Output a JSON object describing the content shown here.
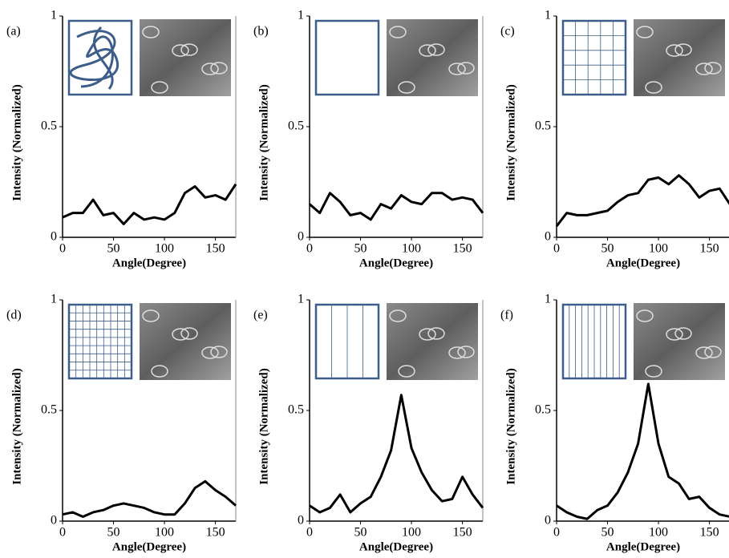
{
  "chart_data": [
    {
      "type": "line",
      "title": "(a)",
      "ylabel": "Intensity (Normalized)",
      "xlabel": "Angle(Degree)",
      "x": [
        0,
        10,
        20,
        30,
        40,
        50,
        60,
        70,
        80,
        90,
        100,
        110,
        120,
        130,
        140,
        150,
        160,
        170
      ],
      "values": [
        0.09,
        0.11,
        0.11,
        0.17,
        0.1,
        0.11,
        0.06,
        0.11,
        0.08,
        0.09,
        0.08,
        0.11,
        0.2,
        0.23,
        0.18,
        0.19,
        0.17,
        0.24
      ],
      "color": "#000000",
      "xlim": [
        0,
        170
      ],
      "xticks": [
        0,
        50,
        100,
        150
      ],
      "ylim": [
        0,
        1
      ],
      "yticks": [
        0,
        0.5,
        1
      ]
    },
    {
      "type": "line",
      "title": "(b)",
      "ylabel": "Intensity (Normalized)",
      "xlabel": "Angle(Degree)",
      "x": [
        0,
        10,
        20,
        30,
        40,
        50,
        60,
        70,
        80,
        90,
        100,
        110,
        120,
        130,
        140,
        150,
        160,
        170
      ],
      "values": [
        0.15,
        0.11,
        0.2,
        0.16,
        0.1,
        0.11,
        0.08,
        0.15,
        0.13,
        0.19,
        0.16,
        0.15,
        0.2,
        0.2,
        0.17,
        0.18,
        0.17,
        0.11
      ],
      "color": "#000000",
      "xlim": [
        0,
        170
      ],
      "xticks": [
        0,
        50,
        100,
        150
      ],
      "ylim": [
        0,
        1
      ],
      "yticks": [
        0,
        0.5,
        1
      ]
    },
    {
      "type": "line",
      "title": "(c)",
      "ylabel": "Intensity (Normalized)",
      "xlabel": "Angle(Degree)",
      "x": [
        0,
        10,
        20,
        30,
        40,
        50,
        60,
        70,
        80,
        90,
        100,
        110,
        120,
        130,
        140,
        150,
        160,
        170
      ],
      "values": [
        0.05,
        0.11,
        0.1,
        0.1,
        0.11,
        0.12,
        0.16,
        0.19,
        0.2,
        0.26,
        0.27,
        0.24,
        0.28,
        0.24,
        0.18,
        0.21,
        0.22,
        0.15
      ],
      "color": "#000000",
      "xlim": [
        0,
        170
      ],
      "xticks": [
        0,
        50,
        100,
        150
      ],
      "ylim": [
        0,
        1
      ],
      "yticks": [
        0,
        0.5,
        1
      ]
    },
    {
      "type": "line",
      "title": "(d)",
      "ylabel": "Intensity (Normalized)",
      "xlabel": "Angle(Degree)",
      "x": [
        0,
        10,
        20,
        30,
        40,
        50,
        60,
        70,
        80,
        90,
        100,
        110,
        120,
        130,
        140,
        150,
        160,
        170
      ],
      "values": [
        0.03,
        0.04,
        0.02,
        0.04,
        0.05,
        0.07,
        0.08,
        0.07,
        0.06,
        0.04,
        0.03,
        0.03,
        0.08,
        0.15,
        0.18,
        0.14,
        0.11,
        0.07
      ],
      "color": "#000000",
      "xlim": [
        0,
        170
      ],
      "xticks": [
        0,
        50,
        100,
        150
      ],
      "ylim": [
        0,
        1
      ],
      "yticks": [
        0,
        0.5,
        1
      ]
    },
    {
      "type": "line",
      "title": "(e)",
      "ylabel": "Intensity (Normalized)",
      "xlabel": "Angle(Degree)",
      "x": [
        0,
        10,
        20,
        30,
        40,
        50,
        60,
        70,
        80,
        90,
        100,
        110,
        120,
        130,
        140,
        150,
        160,
        170
      ],
      "values": [
        0.07,
        0.04,
        0.06,
        0.12,
        0.04,
        0.08,
        0.11,
        0.2,
        0.32,
        0.57,
        0.33,
        0.22,
        0.14,
        0.09,
        0.1,
        0.2,
        0.12,
        0.06
      ],
      "color": "#000000",
      "xlim": [
        0,
        170
      ],
      "xticks": [
        0,
        50,
        100,
        150
      ],
      "ylim": [
        0,
        1
      ],
      "yticks": [
        0,
        0.5,
        1
      ]
    },
    {
      "type": "line",
      "title": "(f)",
      "ylabel": "Intensity (Normalized)",
      "xlabel": "Angle(Degree)",
      "x": [
        0,
        10,
        20,
        30,
        40,
        50,
        60,
        70,
        80,
        90,
        100,
        110,
        120,
        130,
        140,
        150,
        160,
        170
      ],
      "values": [
        0.07,
        0.04,
        0.02,
        0.01,
        0.05,
        0.07,
        0.13,
        0.22,
        0.35,
        0.62,
        0.35,
        0.2,
        0.17,
        0.1,
        0.11,
        0.06,
        0.03,
        0.02
      ],
      "color": "#000000",
      "xlim": [
        0,
        170
      ],
      "xticks": [
        0,
        50,
        100,
        150
      ],
      "ylim": [
        0,
        1
      ],
      "yticks": [
        0,
        0.5,
        1
      ]
    }
  ]
}
